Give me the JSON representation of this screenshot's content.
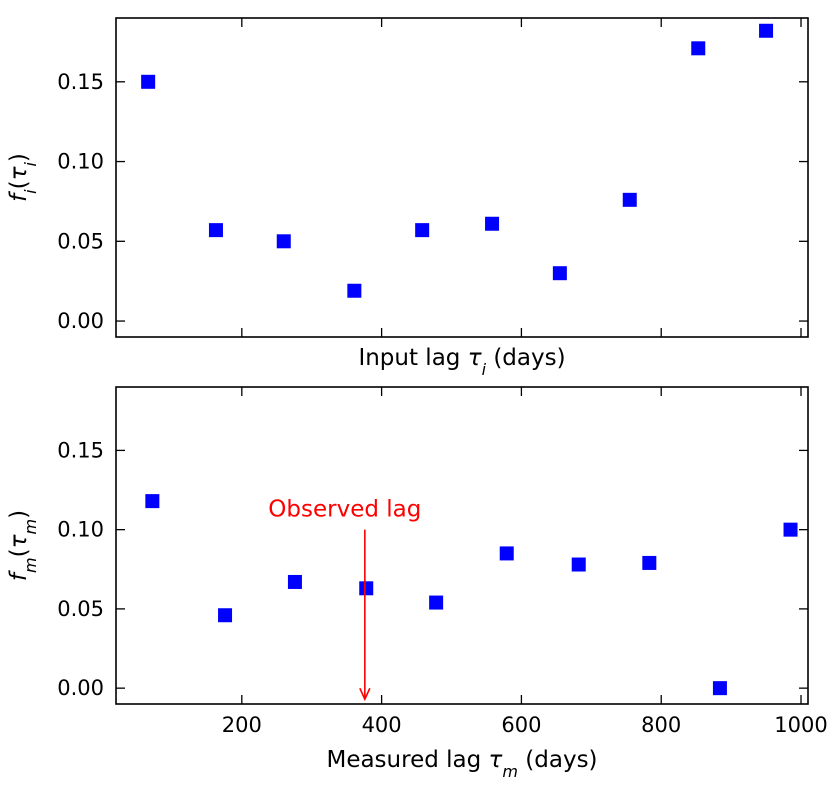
{
  "colors": {
    "marker": "#0000ff",
    "annotation": "#ff0000",
    "axes": "#000000",
    "background": "#ffffff"
  },
  "chart_data": [
    {
      "type": "scatter",
      "title": "",
      "xlabel": "Input lag τi (days)",
      "xlabel_main": "Input lag ",
      "xlabel_var": "τ",
      "xlabel_sub": "i",
      "xlabel_tail": " (days)",
      "ylabel_prefix": "f",
      "ylabel_sub": "i",
      "ylabel_arg": "τ",
      "ylabel_arg_sub": "i",
      "xlim": [
        20,
        1010
      ],
      "ylim": [
        -0.01,
        0.19
      ],
      "xticks": [
        200,
        400,
        600,
        800,
        1000
      ],
      "xtick_labels_visible": false,
      "yticks": [
        0.0,
        0.05,
        0.1,
        0.15
      ],
      "ytick_labels": [
        "0.00",
        "0.05",
        "0.10",
        "0.15"
      ],
      "grid": false,
      "x": [
        66,
        163,
        260,
        361,
        458,
        558,
        655,
        755,
        853,
        950
      ],
      "y": [
        0.15,
        0.057,
        0.05,
        0.019,
        0.057,
        0.061,
        0.03,
        0.076,
        0.171,
        0.182
      ]
    },
    {
      "type": "scatter",
      "title": "",
      "xlabel": "Measured lag τm (days)",
      "xlabel_main": "Measured lag ",
      "xlabel_var": "τ",
      "xlabel_sub": "m",
      "xlabel_tail": " (days)",
      "ylabel_prefix": "f",
      "ylabel_sub": "m",
      "ylabel_arg": "τ",
      "ylabel_arg_sub": "m",
      "xlim": [
        20,
        1010
      ],
      "ylim": [
        -0.01,
        0.19
      ],
      "xticks": [
        200,
        400,
        600,
        800,
        1000
      ],
      "xtick_labels_visible": true,
      "xtick_labels": [
        "200",
        "400",
        "600",
        "800",
        "1000"
      ],
      "yticks": [
        0.0,
        0.05,
        0.1,
        0.15
      ],
      "ytick_labels": [
        "0.00",
        "0.05",
        "0.10",
        "0.15"
      ],
      "grid": false,
      "x": [
        72,
        176,
        276,
        378,
        478,
        579,
        682,
        783,
        884,
        985
      ],
      "y": [
        0.118,
        0.046,
        0.067,
        0.063,
        0.054,
        0.085,
        0.078,
        0.079,
        0.0,
        0.1
      ],
      "annotation": {
        "text": "Observed lag",
        "x": 376,
        "y_start": 0.1,
        "y_end": -0.007
      }
    }
  ]
}
